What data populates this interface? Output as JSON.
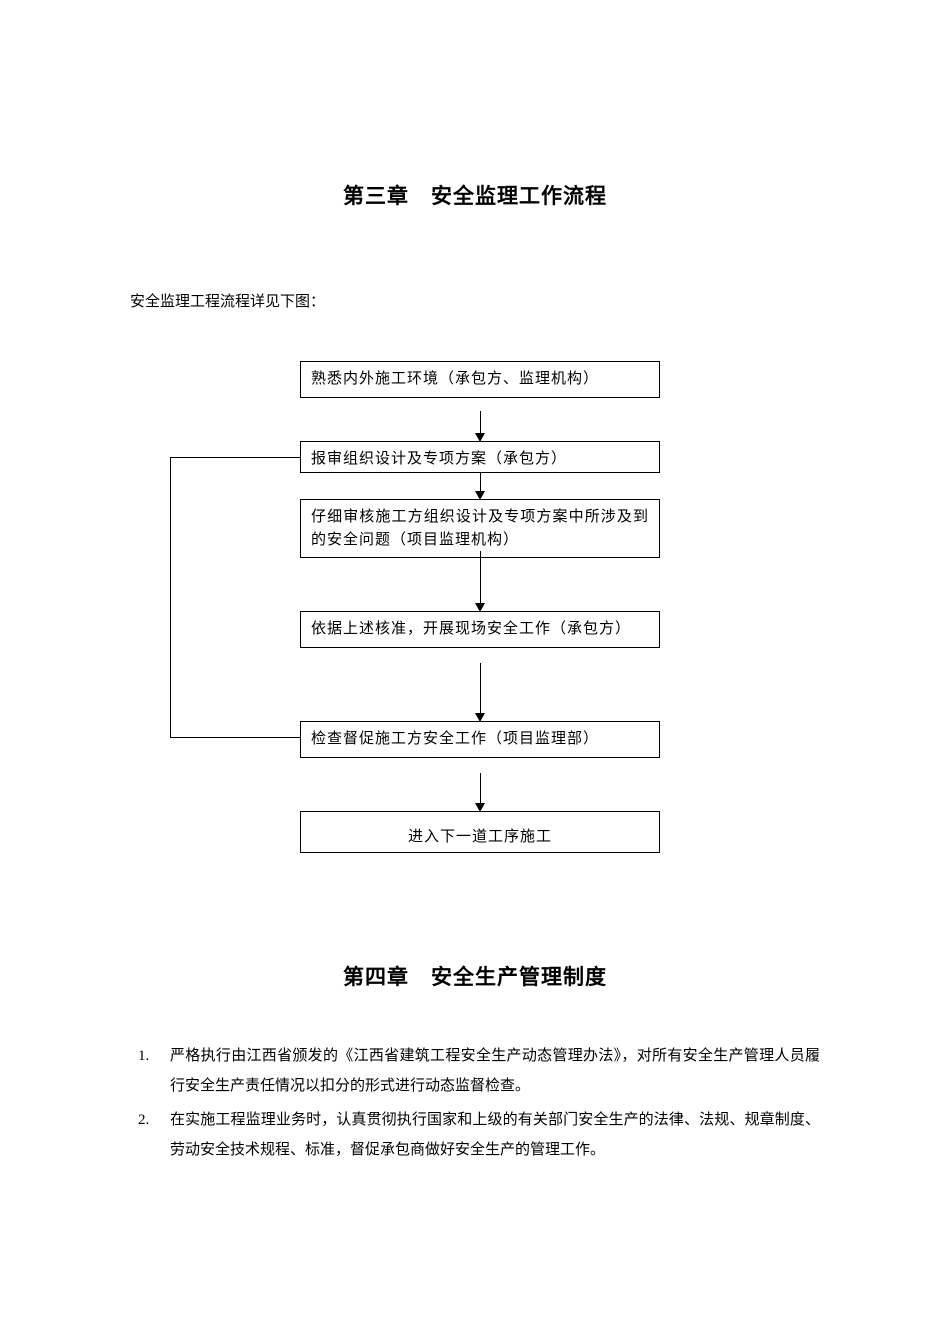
{
  "chapter3": {
    "title": "第三章　安全监理工作流程",
    "intro": "安全监理工程流程详见下图：",
    "flowchart": {
      "type": "flowchart",
      "node_border_color": "#000000",
      "node_bg_color": "#ffffff",
      "arrow_color": "#000000",
      "font_size": 15,
      "nodes": [
        {
          "id": "n1",
          "label": "熟悉内外施工环境（承包方、监理机构）"
        },
        {
          "id": "n2",
          "label": "报审组织设计及专项方案（承包方）"
        },
        {
          "id": "n3",
          "label": "仔细审核施工方组织设计及专项方案中所涉及到的安全问题（项目监理机构）"
        },
        {
          "id": "n4",
          "label": "依据上述核准，开展现场安全工作（承包方）"
        },
        {
          "id": "n5",
          "label": "检查督促施工方安全工作（项目监理部）"
        },
        {
          "id": "n6",
          "label": "进入下一道工序施工"
        }
      ],
      "edges": [
        {
          "from": "n1",
          "to": "n2",
          "type": "arrow"
        },
        {
          "from": "n2",
          "to": "n3",
          "type": "arrow"
        },
        {
          "from": "n3",
          "to": "n4",
          "type": "arrow"
        },
        {
          "from": "n4",
          "to": "n5",
          "type": "arrow"
        },
        {
          "from": "n5",
          "to": "n6",
          "type": "arrow"
        },
        {
          "from": "n5",
          "to": "n2",
          "type": "feedback"
        }
      ]
    }
  },
  "chapter4": {
    "title": "第四章　安全生产管理制度",
    "items": [
      {
        "num": "1.",
        "text": "严格执行由江西省颁发的《江西省建筑工程安全生产动态管理办法》，对所有安全生产管理人员履行安全生产责任情况以扣分的形式进行动态监督检查。"
      },
      {
        "num": "2.",
        "text": "在实施工程监理业务时，认真贯彻执行国家和上级的有关部门安全生产的法律、法规、规章制度、劳动安全技术规程、标准，督促承包商做好安全生产的管理工作。"
      }
    ]
  },
  "colors": {
    "background": "#ffffff",
    "text": "#000000",
    "border": "#000000"
  }
}
